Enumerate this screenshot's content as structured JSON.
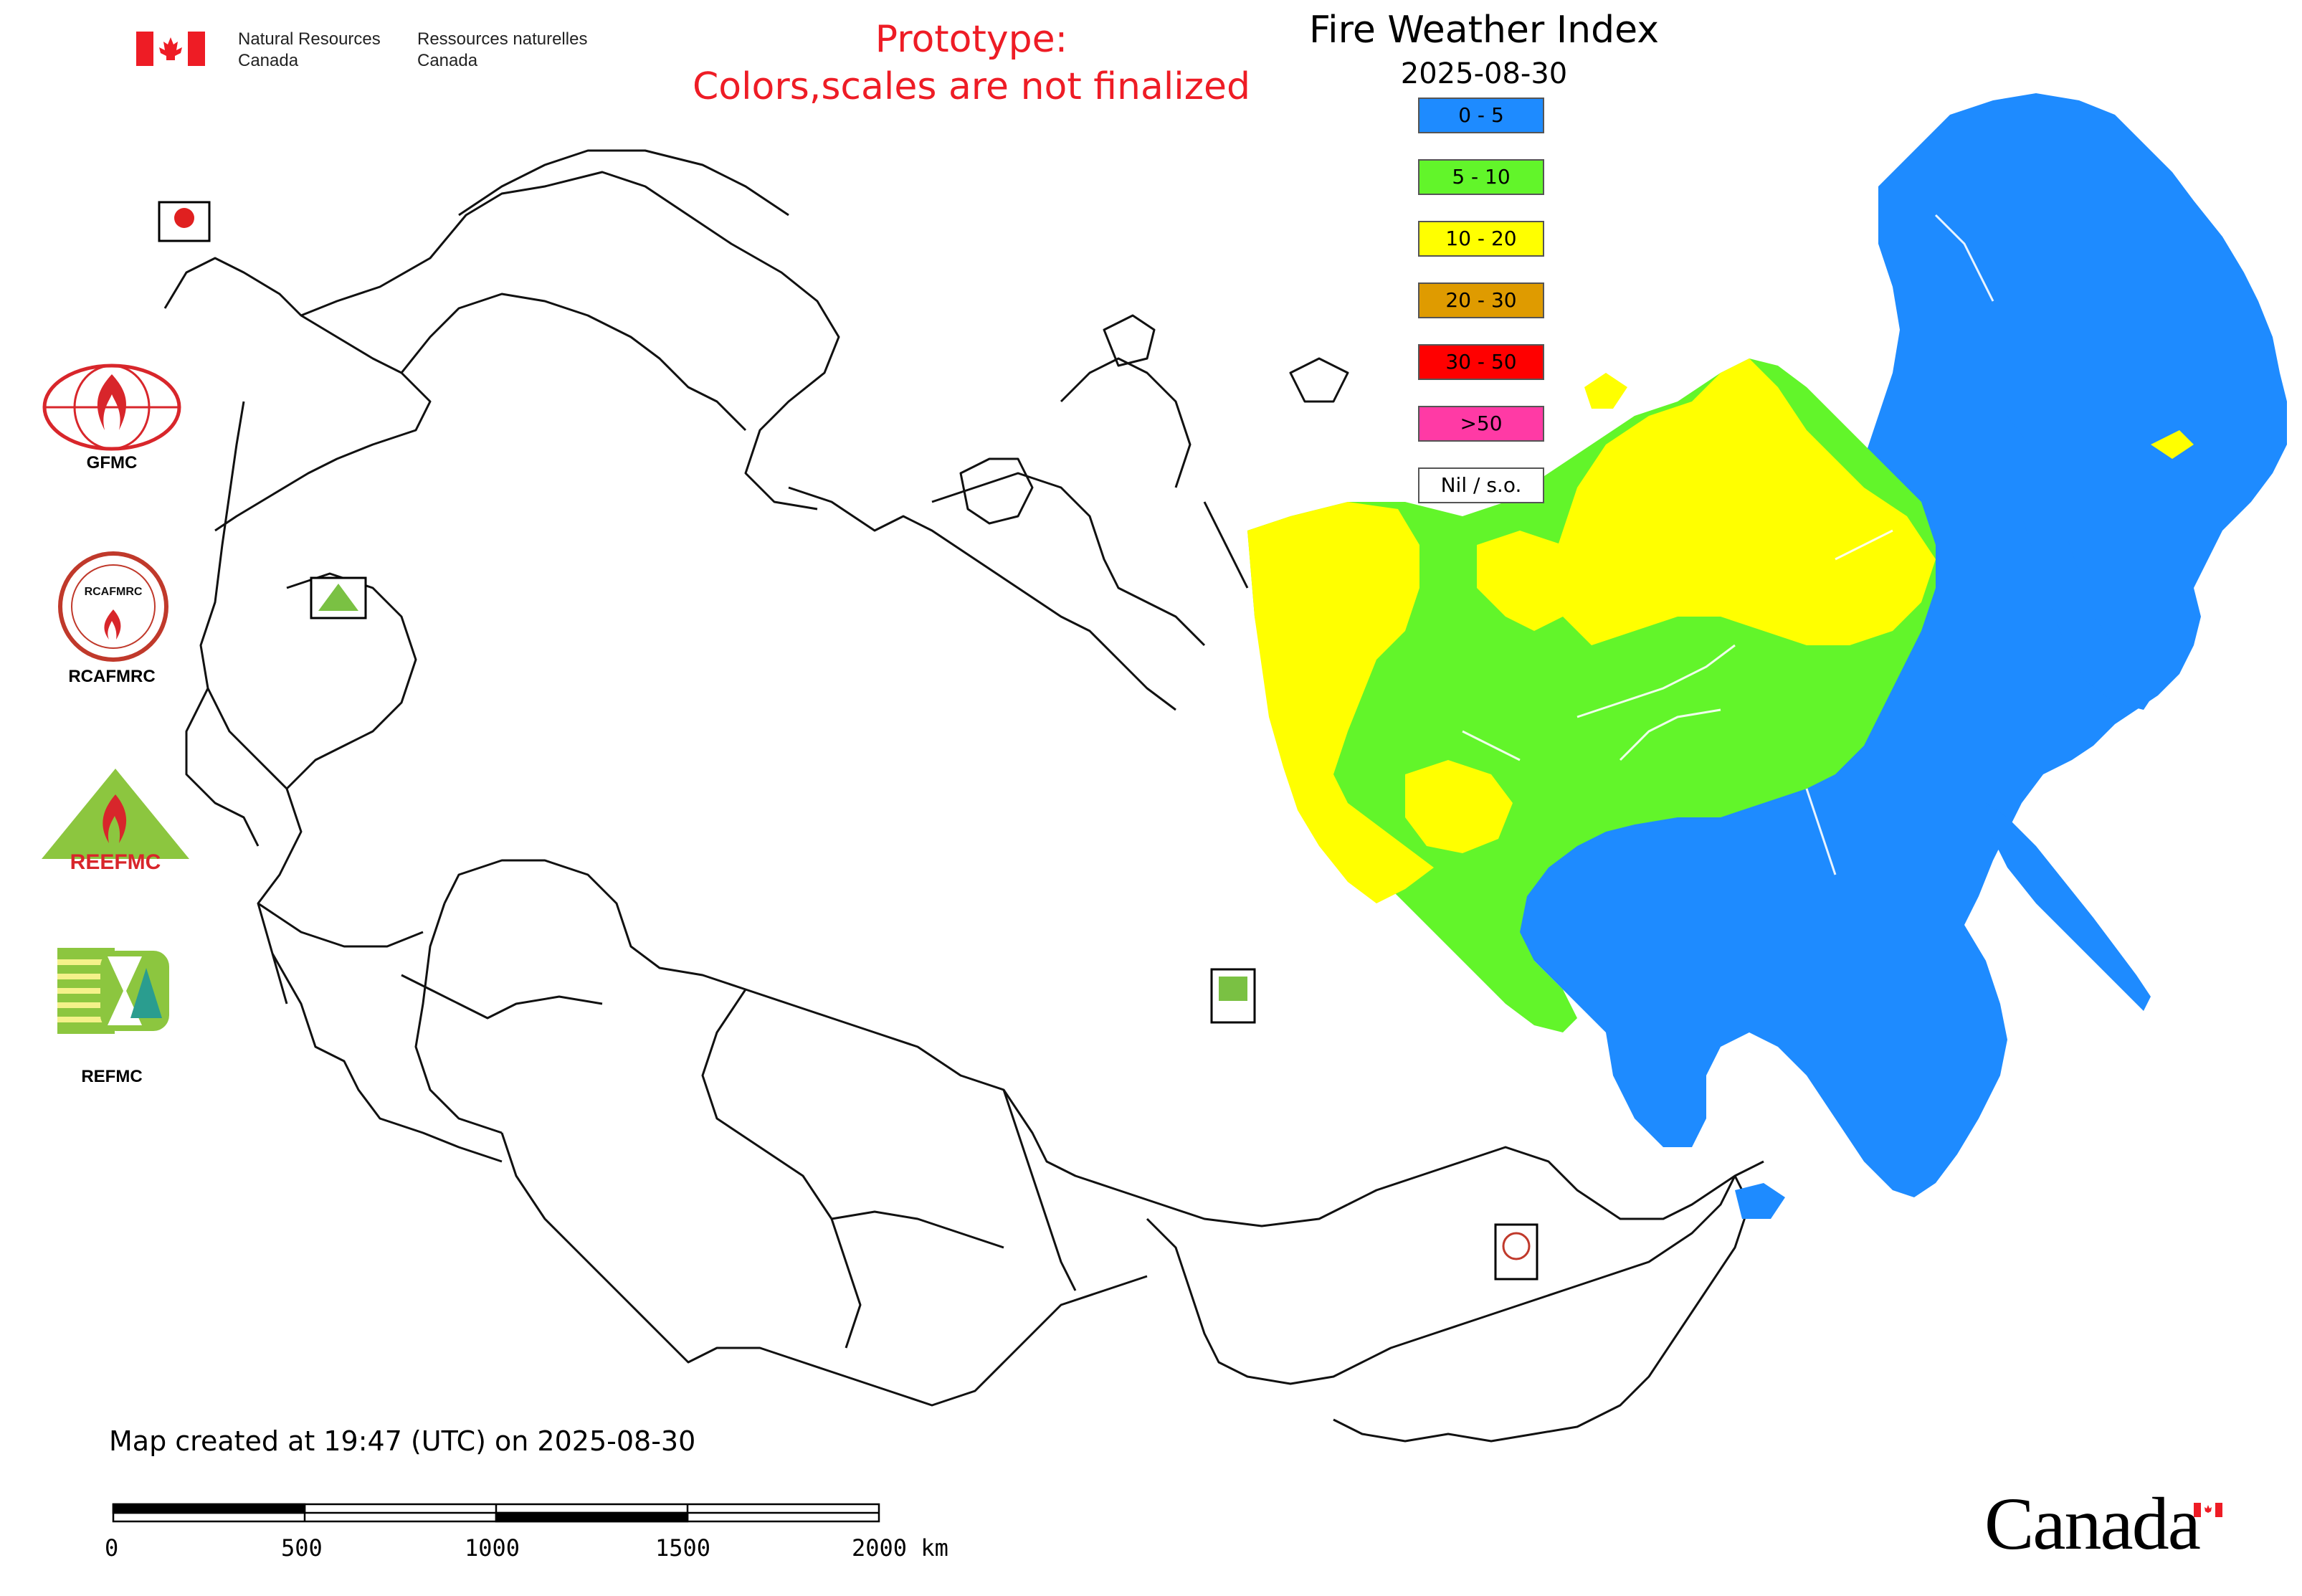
{
  "header": {
    "agency_en_line1": "Natural Resources",
    "agency_en_line2": "Canada",
    "agency_fr_line1": "Ressources naturelles",
    "agency_fr_line2": "Canada",
    "prototype_line1": "Prototype:",
    "prototype_line2": "Colors,scales are not finalized",
    "title": "Fire Weather Index",
    "date": "2025-08-30"
  },
  "legend": {
    "items": [
      {
        "label": "0 - 5",
        "color": "#1e8bff"
      },
      {
        "label": "5 - 10",
        "color": "#62f52a"
      },
      {
        "label": "10 - 20",
        "color": "#ffff00"
      },
      {
        "label": "20 - 30",
        "color": "#df9b00"
      },
      {
        "label": "30 - 50",
        "color": "#ff0000"
      },
      {
        "label": ">50",
        "color": "#ff3aa5"
      },
      {
        "label": "Nil / s.o.",
        "color": "#ffffff"
      }
    ]
  },
  "partners": {
    "gfmc": "GFMC",
    "rcafmrc": "RCAFMRC",
    "reefmc": "REEFMC",
    "refmc": "REFMC",
    "reefmc_logo_text": "REEFMC",
    "rcafmrc_logo_text": "RCAFMRC"
  },
  "footer": {
    "created": "Map created at 19:47 (UTC) on 2025-08-30",
    "scale_labels": [
      "0",
      "500",
      "1000",
      "1500",
      "2000 km"
    ],
    "wordmark": "Canada"
  },
  "colors": {
    "fwi_blue": "#1e8bff",
    "fwi_green": "#62f52a",
    "fwi_yellow": "#ffff00",
    "canada_red": "#ee1c25"
  }
}
